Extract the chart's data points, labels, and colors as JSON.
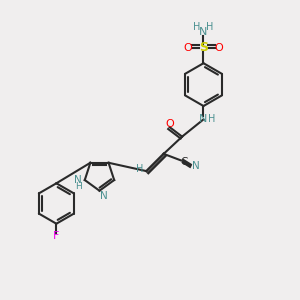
{
  "bg_color": "#f0eeee",
  "bond_color": "#2a2a2a",
  "colors": {
    "N": "#4a9090",
    "O": "#ff0000",
    "S": "#cccc00",
    "F": "#ee00ee",
    "C": "#2a2a2a",
    "H": "#4a9090"
  }
}
